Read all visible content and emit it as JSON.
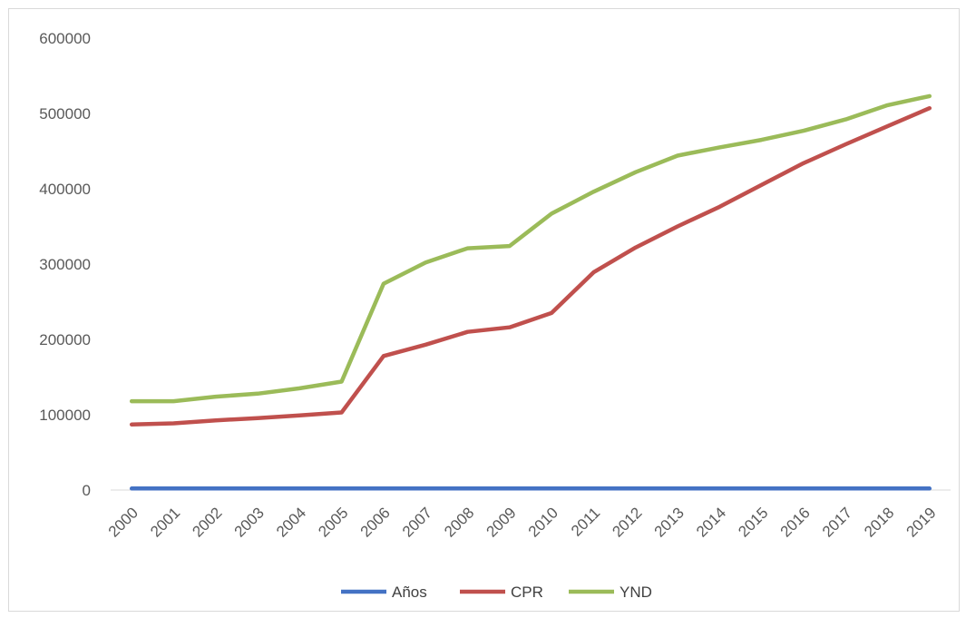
{
  "chart_data": {
    "type": "line",
    "title": "",
    "xlabel": "",
    "ylabel": "",
    "categories": [
      "2000",
      "2001",
      "2002",
      "2003",
      "2004",
      "2005",
      "2006",
      "2007",
      "2008",
      "2009",
      "2010",
      "2011",
      "2012",
      "2013",
      "2014",
      "2015",
      "2016",
      "2017",
      "2018",
      "2019"
    ],
    "ylim": [
      0,
      600000
    ],
    "yticks": [
      "0",
      "100000",
      "200000",
      "300000",
      "400000",
      "500000",
      "600000"
    ],
    "grid": false,
    "legend_position": "bottom",
    "series": [
      {
        "name": "Años",
        "color": "#4472c4",
        "values": [
          2000,
          2001,
          2002,
          2003,
          2004,
          2005,
          2006,
          2007,
          2008,
          2009,
          2010,
          2011,
          2012,
          2013,
          2014,
          2015,
          2016,
          2017,
          2018,
          2019
        ]
      },
      {
        "name": "CPR",
        "color": "#c0504d",
        "values": [
          87000,
          88500,
          92500,
          95500,
          99000,
          103000,
          178000,
          193000,
          210000,
          216000,
          235000,
          289000,
          322000,
          350000,
          376000,
          405000,
          434000,
          459000,
          483000,
          507000
        ]
      },
      {
        "name": "YND",
        "color": "#9bbb59",
        "values": [
          118000,
          118000,
          124000,
          128000,
          135000,
          144000,
          274000,
          302000,
          321000,
          324000,
          367000,
          396000,
          422000,
          444000,
          455000,
          465000,
          477000,
          492000,
          511000,
          523000
        ]
      }
    ]
  }
}
